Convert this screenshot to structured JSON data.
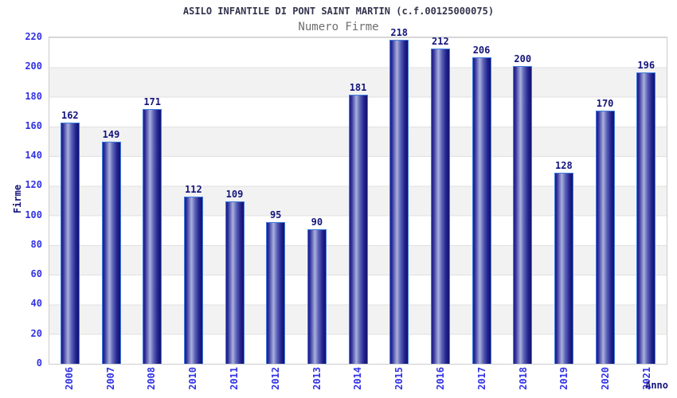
{
  "title": "ASILO INFANTILE DI PONT SAINT MARTIN (c.f.00125000075)",
  "subtitle": "Numero Firme",
  "chart_data": {
    "type": "bar",
    "title": "ASILO INFANTILE DI PONT SAINT MARTIN (c.f.00125000075)",
    "subtitle": "Numero Firme",
    "categories": [
      "2006",
      "2007",
      "2008",
      "2010",
      "2011",
      "2012",
      "2013",
      "2014",
      "2015",
      "2016",
      "2017",
      "2018",
      "2019",
      "2020",
      "2021"
    ],
    "values": [
      162,
      149,
      171,
      112,
      109,
      95,
      90,
      181,
      218,
      212,
      206,
      200,
      128,
      170,
      196
    ],
    "xlabel": "Anno",
    "ylabel": "Firme",
    "ylim": [
      0,
      220
    ],
    "ytick_step": 20,
    "grid": "horizontal alternating bands with gridlines every 20",
    "legend": "none",
    "bar_labels": "value shown above each bar",
    "x_tick_rotation": -90
  },
  "colors": {
    "axis_tick_label": "#3232e6",
    "value_label": "#14147c",
    "title": "#33334d",
    "subtitle": "#6e6e6e",
    "bar_border": "#3f7de0",
    "bar_gradient_dark": "#1b1b86",
    "bar_gradient_light": "#aab0dc",
    "band_gray": "#f2f2f2",
    "plot_border": "#cccccc",
    "background": "#ffffff"
  }
}
